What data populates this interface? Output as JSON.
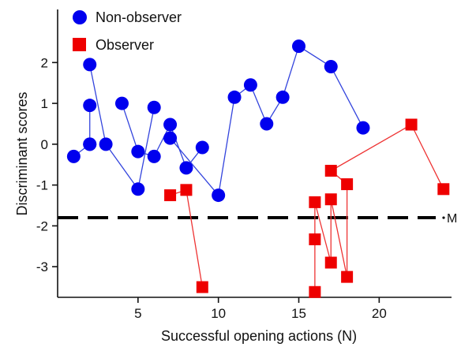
{
  "chart_data": {
    "type": "scatter",
    "xlabel": "Successful opening actions (N)",
    "ylabel": "Discriminant scores",
    "xlim": [
      0,
      24.5
    ],
    "ylim": [
      -3.75,
      3.3
    ],
    "xticks": [
      5,
      10,
      15,
      20
    ],
    "yticks": [
      2,
      1,
      0,
      -1,
      -2,
      -3
    ],
    "x_tick_labels": [
      "5",
      "10",
      "15",
      "20"
    ],
    "y_tick_labels": [
      "2",
      "1",
      "0",
      "-1",
      "-2",
      "-3"
    ],
    "grid": false,
    "legend_position": "top-left",
    "threshold": {
      "y": -1.8,
      "label": "M"
    },
    "series": [
      {
        "name": "Non-observer",
        "marker": "circle",
        "color": "#0000ee",
        "line_color": "#3344dd",
        "segments": [
          [
            [
              1,
              -0.3
            ],
            [
              2,
              0.0
            ]
          ],
          [
            [
              2,
              1.95
            ],
            [
              3,
              0.0
            ],
            [
              5,
              -1.1
            ],
            [
              6,
              0.9
            ]
          ],
          [
            [
              2,
              0.95
            ],
            [
              2,
              0.0
            ]
          ],
          [
            [
              4,
              1.0
            ],
            [
              5,
              -0.18
            ],
            [
              6,
              -0.3
            ],
            [
              7,
              0.48
            ],
            [
              8,
              -0.58
            ],
            [
              9,
              -0.08
            ]
          ],
          [
            [
              7,
              0.15
            ],
            [
              10,
              -1.25
            ],
            [
              11,
              1.15
            ],
            [
              12,
              1.45
            ],
            [
              13,
              0.5
            ],
            [
              14,
              1.15
            ],
            [
              15,
              2.4
            ],
            [
              17,
              1.9
            ],
            [
              19,
              0.4
            ]
          ]
        ]
      },
      {
        "name": "Observer",
        "marker": "square",
        "color": "#ee0000",
        "line_color": "#ee3333",
        "segments": [
          [
            [
              7,
              -1.25
            ],
            [
              8,
              -1.12
            ],
            [
              9,
              -3.5
            ]
          ],
          [
            [
              16,
              -3.62
            ],
            [
              16,
              -2.33
            ],
            [
              16,
              -1.42
            ],
            [
              17,
              -2.9
            ],
            [
              17,
              -1.35
            ],
            [
              18,
              -3.25
            ],
            [
              18,
              -0.98
            ],
            [
              17,
              -0.65
            ],
            [
              22,
              0.48
            ],
            [
              24,
              -1.1
            ]
          ]
        ]
      }
    ]
  }
}
